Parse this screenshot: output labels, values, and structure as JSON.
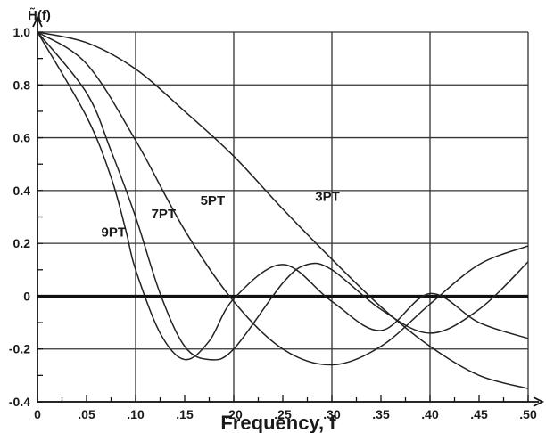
{
  "chart_data": {
    "type": "line",
    "ylabel": "H̃(f)",
    "xlabel": "Frequency, f",
    "xlim": [
      0,
      0.5
    ],
    "ylim": [
      -0.4,
      1.0
    ],
    "grid": true,
    "x_ticks": [
      {
        "v": 0,
        "label": "0"
      },
      {
        "v": 0.05,
        "label": ".05"
      },
      {
        "v": 0.1,
        "label": ".10"
      },
      {
        "v": 0.15,
        "label": ".15"
      },
      {
        "v": 0.2,
        "label": ".20"
      },
      {
        "v": 0.25,
        "label": ".25"
      },
      {
        "v": 0.3,
        "label": ".30"
      },
      {
        "v": 0.35,
        "label": ".35"
      },
      {
        "v": 0.4,
        "label": ".40"
      },
      {
        "v": 0.45,
        "label": ".45"
      },
      {
        "v": 0.5,
        "label": ".50"
      }
    ],
    "y_ticks": [
      {
        "v": 1.0,
        "label": "1.0"
      },
      {
        "v": 0.8,
        "label": "0.8"
      },
      {
        "v": 0.6,
        "label": "0.6"
      },
      {
        "v": 0.4,
        "label": "0.4"
      },
      {
        "v": 0.2,
        "label": "0.2"
      },
      {
        "v": 0,
        "label": "0"
      },
      {
        "v": -0.2,
        "label": "-0.2"
      },
      {
        "v": -0.4,
        "label": "-0.4"
      }
    ],
    "series": [
      {
        "name": "3PT",
        "label_at": [
          0.283,
          0.36
        ],
        "x": [
          0,
          0.05,
          0.1,
          0.15,
          0.2,
          0.25,
          0.3,
          0.35,
          0.4,
          0.45,
          0.5
        ],
        "y": [
          1.0,
          0.96,
          0.86,
          0.7,
          0.53,
          0.33,
          0.14,
          -0.04,
          -0.19,
          -0.3,
          -0.35
        ]
      },
      {
        "name": "5PT",
        "label_at": [
          0.166,
          0.345
        ],
        "x": [
          0,
          0.05,
          0.1,
          0.15,
          0.2,
          0.25,
          0.3,
          0.35,
          0.4,
          0.45,
          0.5
        ],
        "y": [
          1.0,
          0.88,
          0.59,
          0.25,
          -0.02,
          -0.2,
          -0.26,
          -0.19,
          -0.03,
          0.12,
          0.19
        ]
      },
      {
        "name": "7PT",
        "label_at": [
          0.116,
          0.295
        ],
        "x": [
          0,
          0.05,
          0.075,
          0.1,
          0.125,
          0.15,
          0.175,
          0.2,
          0.25,
          0.275,
          0.3,
          0.35,
          0.4,
          0.45,
          0.5
        ],
        "y": [
          1.0,
          0.77,
          0.55,
          0.3,
          0.01,
          -0.19,
          -0.24,
          -0.2,
          0.05,
          0.12,
          0.1,
          -0.05,
          -0.14,
          -0.05,
          0.13
        ]
      },
      {
        "name": "9PT",
        "label_at": [
          0.065,
          0.225
        ],
        "x": [
          0,
          0.05,
          0.075,
          0.09,
          0.1,
          0.125,
          0.15,
          0.175,
          0.2,
          0.25,
          0.3,
          0.35,
          0.4,
          0.45,
          0.5
        ],
        "y": [
          1.0,
          0.68,
          0.45,
          0.25,
          0.1,
          -0.14,
          -0.24,
          -0.17,
          -0.01,
          0.12,
          -0.02,
          -0.13,
          0.01,
          -0.1,
          -0.16
        ]
      }
    ]
  }
}
